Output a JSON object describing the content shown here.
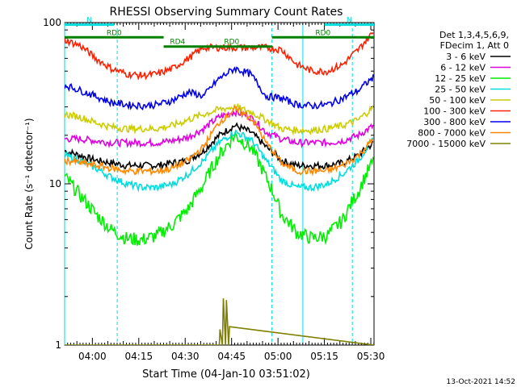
{
  "chart_data": {
    "type": "line",
    "title": "RHESSI Observing Summary Count Rates",
    "xlabel": "Start Time (04-Jan-10 03:51:02)",
    "ylabel": "Count Rate (s⁻¹ detector⁻¹)",
    "yscale": "log",
    "ylim": [
      1,
      100
    ],
    "xlim_minutes": [
      0,
      100
    ],
    "x_ticks": [
      {
        "label": "04:00",
        "minutes": 8.97
      },
      {
        "label": "04:15",
        "minutes": 23.97
      },
      {
        "label": "04:30",
        "minutes": 38.97
      },
      {
        "label": "04:45",
        "minutes": 53.97
      },
      {
        "label": "05:00",
        "minutes": 68.97
      },
      {
        "label": "05:15",
        "minutes": 83.97
      },
      {
        "label": "05:30",
        "minutes": 98.97
      }
    ],
    "y_ticks": [
      {
        "label": "1",
        "value": 1
      },
      {
        "label": "10",
        "value": 10
      },
      {
        "label": "100",
        "value": 100
      }
    ],
    "legend_header": [
      "Det 1,3,4,5,6,9,",
      "FDecim 1, Att 0"
    ],
    "series": [
      {
        "name": "3 - 6 keV",
        "color": "#000000",
        "x": [
          0,
          5,
          10,
          15,
          20,
          25,
          30,
          35,
          40,
          45,
          50,
          55,
          60,
          65,
          70,
          75,
          80,
          85,
          90,
          95,
          100
        ],
        "values": [
          16,
          15,
          14,
          13.5,
          13,
          13,
          13,
          13.5,
          14,
          16,
          20,
          23,
          21,
          17,
          14,
          13,
          13,
          13,
          13.5,
          15,
          18
        ]
      },
      {
        "name": "6 - 12 keV",
        "color": "#e000e0",
        "x": [
          0,
          5,
          10,
          15,
          20,
          25,
          30,
          35,
          40,
          45,
          50,
          55,
          60,
          65,
          70,
          75,
          80,
          85,
          90,
          95,
          100
        ],
        "values": [
          19,
          19,
          18.5,
          18,
          18,
          18,
          18,
          18.5,
          19.5,
          22,
          26,
          28,
          26,
          21,
          19,
          18,
          18,
          18,
          18.5,
          20,
          23
        ]
      },
      {
        "name": "12 - 25 keV",
        "color": "#00ee00",
        "x": [
          0,
          5,
          10,
          15,
          20,
          25,
          30,
          35,
          40,
          45,
          50,
          55,
          60,
          65,
          70,
          75,
          80,
          85,
          90,
          95,
          100
        ],
        "values": [
          11,
          8.5,
          6.5,
          5.2,
          4.6,
          4.5,
          4.8,
          5.6,
          7,
          10,
          15,
          20,
          17,
          11,
          6.5,
          5,
          4.6,
          4.8,
          6,
          9,
          14
        ]
      },
      {
        "name": "25 - 50 keV",
        "color": "#00dddd",
        "x": [
          0,
          5,
          10,
          15,
          20,
          25,
          30,
          35,
          40,
          45,
          50,
          55,
          60,
          65,
          70,
          75,
          80,
          85,
          90,
          95,
          100
        ],
        "values": [
          15,
          14,
          12.5,
          11,
          10,
          9.5,
          9.5,
          10,
          11.5,
          14,
          18,
          21,
          19,
          14,
          10.5,
          9.5,
          9.5,
          10,
          11.5,
          14,
          19
        ]
      },
      {
        "name": "50 - 100 keV",
        "color": "#cccc00",
        "x": [
          0,
          5,
          10,
          15,
          20,
          25,
          30,
          35,
          40,
          45,
          50,
          55,
          60,
          65,
          70,
          75,
          80,
          85,
          90,
          95,
          100
        ],
        "values": [
          27,
          26,
          24,
          22.5,
          22,
          22,
          22,
          23,
          25,
          27,
          29,
          30,
          28,
          25,
          22,
          21.5,
          21.5,
          22,
          23,
          25,
          30
        ]
      },
      {
        "name": "100 - 300 keV",
        "color": "#ff2000",
        "x": [
          0,
          5,
          10,
          15,
          20,
          25,
          30,
          35,
          40,
          45,
          50,
          55,
          60,
          65,
          70,
          75,
          80,
          85,
          90,
          95,
          100
        ],
        "values": [
          78,
          72,
          60,
          52,
          48,
          47,
          48,
          52,
          60,
          70,
          70,
          70,
          70,
          70,
          68,
          55,
          50,
          50,
          55,
          68,
          88
        ]
      },
      {
        "name": "300 - 800 keV",
        "color": "#0000ee",
        "x": [
          0,
          5,
          10,
          15,
          20,
          25,
          30,
          35,
          40,
          45,
          50,
          55,
          60,
          65,
          70,
          75,
          80,
          85,
          90,
          95,
          100
        ],
        "values": [
          41,
          38,
          35,
          32,
          31,
          30.5,
          31,
          33,
          37,
          35,
          45,
          52,
          48,
          35,
          34,
          31,
          30.5,
          31,
          34,
          38,
          46
        ]
      },
      {
        "name": "800 - 7000 keV",
        "color": "#ff8800",
        "x": [
          0,
          5,
          10,
          15,
          20,
          25,
          30,
          35,
          40,
          45,
          50,
          55,
          60,
          65,
          70,
          75,
          80,
          85,
          90,
          95,
          100
        ],
        "values": [
          14,
          13.5,
          13,
          12.5,
          12,
          12,
          12,
          12.5,
          14,
          17,
          24,
          29,
          26,
          18,
          13.5,
          12,
          12,
          12,
          13,
          15,
          19
        ]
      },
      {
        "name": "7000 - 15000 keV",
        "color": "#808000",
        "x": [
          0,
          50,
          50.2,
          51,
          51.3,
          52,
          52.3,
          53,
          53.3,
          100
        ],
        "values": [
          1,
          1,
          1.25,
          1,
          1.95,
          1,
          1.9,
          1,
          1.3,
          1
        ]
      }
    ],
    "annotations": [
      {
        "label": "N",
        "color": "#00dddd",
        "y_value": 97,
        "x_range": [
          0,
          16
        ]
      },
      {
        "label": "N",
        "color": "#00dddd",
        "y_value": 97,
        "x_range": [
          84,
          100
        ]
      },
      {
        "label": "RD0",
        "color": "#008000",
        "y_value": 81,
        "x_range": [
          0,
          32
        ]
      },
      {
        "label": "RD0",
        "color": "#008000",
        "y_value": 71,
        "x_range": [
          41,
          67
        ]
      },
      {
        "label": "RD0",
        "color": "#008000",
        "y_value": 81,
        "x_range": [
          67,
          100
        ]
      },
      {
        "label": "RD4",
        "color": "#008000",
        "y_value": 71,
        "x_range": [
          32,
          41
        ]
      }
    ],
    "vlines": [
      {
        "minutes": 0,
        "style": "solid",
        "color": "#00dddd"
      },
      {
        "minutes": 17,
        "style": "dashed",
        "color": "#00dddd"
      },
      {
        "minutes": 67,
        "style": "dashed",
        "color": "#00dddd"
      },
      {
        "minutes": 77,
        "style": "solid",
        "color": "#00dddd"
      },
      {
        "minutes": 93,
        "style": "dashed",
        "color": "#00dddd"
      }
    ]
  },
  "timestamp": "13-Oct-2021 14:52"
}
